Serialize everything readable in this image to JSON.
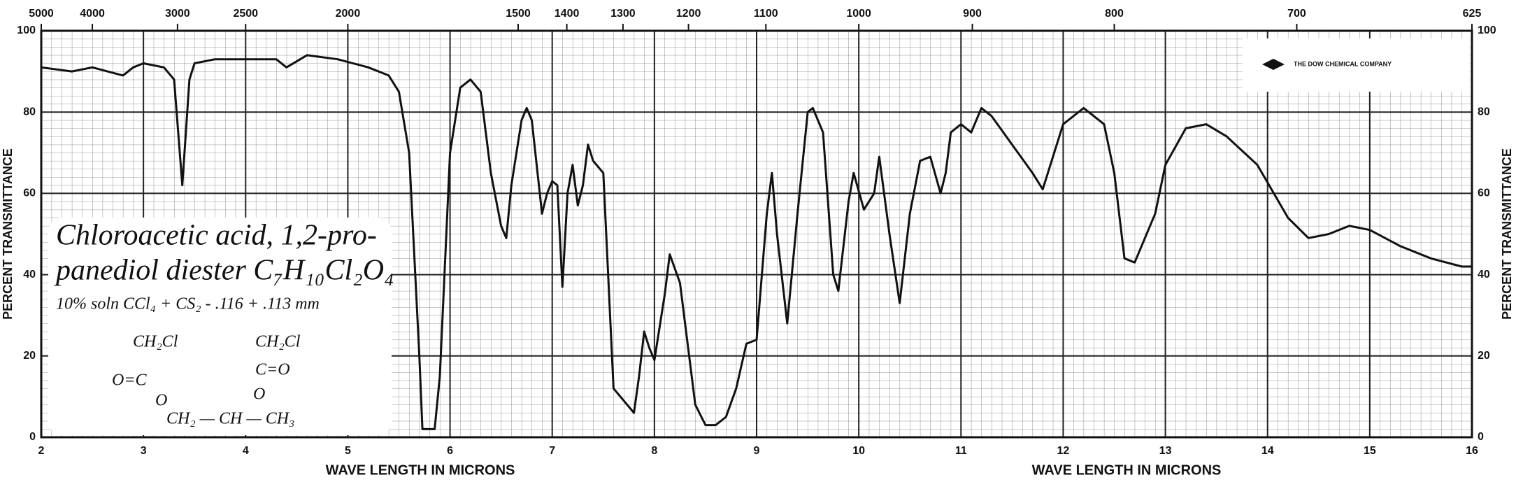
{
  "chart_data": {
    "type": "line",
    "xlabel": "WAVE LENGTH IN MICRONS",
    "ylabel": "PERCENT TRANSMITTANCE",
    "xlim": [
      2,
      16
    ],
    "xticks": [
      2,
      3,
      4,
      5,
      6,
      7,
      8,
      9,
      10,
      11,
      12,
      13,
      14,
      15,
      16
    ],
    "ylim": [
      0,
      100
    ],
    "yticks": [
      0,
      20,
      40,
      60,
      80,
      100
    ],
    "x2ticks": [
      5000,
      4000,
      3000,
      2500,
      2000,
      1500,
      1400,
      1300,
      1200,
      1100,
      1000,
      900,
      800,
      700,
      625
    ],
    "grid": true,
    "color": "#111111",
    "x": [
      2.0,
      2.3,
      2.5,
      2.8,
      2.9,
      3.0,
      3.2,
      3.3,
      3.38,
      3.45,
      3.5,
      3.7,
      4.0,
      4.3,
      4.4,
      4.6,
      4.9,
      5.2,
      5.4,
      5.5,
      5.6,
      5.7,
      5.73,
      5.85,
      5.9,
      6.0,
      6.1,
      6.2,
      6.3,
      6.4,
      6.5,
      6.55,
      6.6,
      6.7,
      6.75,
      6.8,
      6.9,
      6.95,
      7.0,
      7.05,
      7.1,
      7.15,
      7.2,
      7.25,
      7.3,
      7.35,
      7.4,
      7.5,
      7.6,
      7.7,
      7.8,
      7.85,
      7.9,
      7.95,
      8.0,
      8.1,
      8.15,
      8.25,
      8.4,
      8.5,
      8.6,
      8.7,
      8.8,
      8.9,
      9.0,
      9.1,
      9.15,
      9.2,
      9.3,
      9.4,
      9.5,
      9.55,
      9.65,
      9.75,
      9.8,
      9.9,
      9.95,
      10.05,
      10.15,
      10.2,
      10.3,
      10.4,
      10.5,
      10.6,
      10.7,
      10.8,
      10.85,
      10.9,
      11.0,
      11.1,
      11.2,
      11.3,
      11.5,
      11.7,
      11.8,
      11.9,
      12.0,
      12.2,
      12.4,
      12.5,
      12.6,
      12.7,
      12.9,
      13.0,
      13.2,
      13.4,
      13.6,
      13.9,
      14.2,
      14.4,
      14.6,
      14.8,
      15.0,
      15.3,
      15.6,
      15.9,
      16.0
    ],
    "values": [
      91,
      90,
      91,
      89,
      91,
      92,
      91,
      88,
      62,
      88,
      92,
      93,
      93,
      93,
      91,
      94,
      93,
      91,
      89,
      85,
      70,
      20,
      2,
      2,
      15,
      70,
      86,
      88,
      85,
      65,
      52,
      49,
      62,
      78,
      81,
      78,
      55,
      60,
      63,
      62,
      37,
      60,
      67,
      57,
      62,
      72,
      68,
      65,
      12,
      9,
      6,
      15,
      26,
      22,
      19,
      35,
      45,
      38,
      8,
      3,
      3,
      5,
      12,
      23,
      24,
      55,
      65,
      50,
      28,
      55,
      80,
      81,
      75,
      40,
      36,
      58,
      65,
      56,
      60,
      69,
      50,
      33,
      55,
      68,
      69,
      60,
      65,
      75,
      77,
      75,
      81,
      79,
      72,
      65,
      61,
      69,
      77,
      81,
      77,
      65,
      44,
      43,
      55,
      67,
      76,
      77,
      74,
      67,
      54,
      49,
      50,
      52,
      51,
      47,
      44,
      42,
      42
    ]
  },
  "annotation": {
    "name_line1": "Chloroacetic acid, 1,2-pro-",
    "name_line2": "panediol diester C₇H₁₀Cl₂O₄",
    "conditions": "10% soln CCl₄ + CS₂ - .116 + .113 mm",
    "structure": [
      "CH₂Cl",
      "O=C",
      "O",
      "CH₂ — CH — CH₃",
      "CH₂Cl",
      "C=O",
      "O"
    ]
  },
  "logo": "THE DOW CHEMICAL COMPANY"
}
